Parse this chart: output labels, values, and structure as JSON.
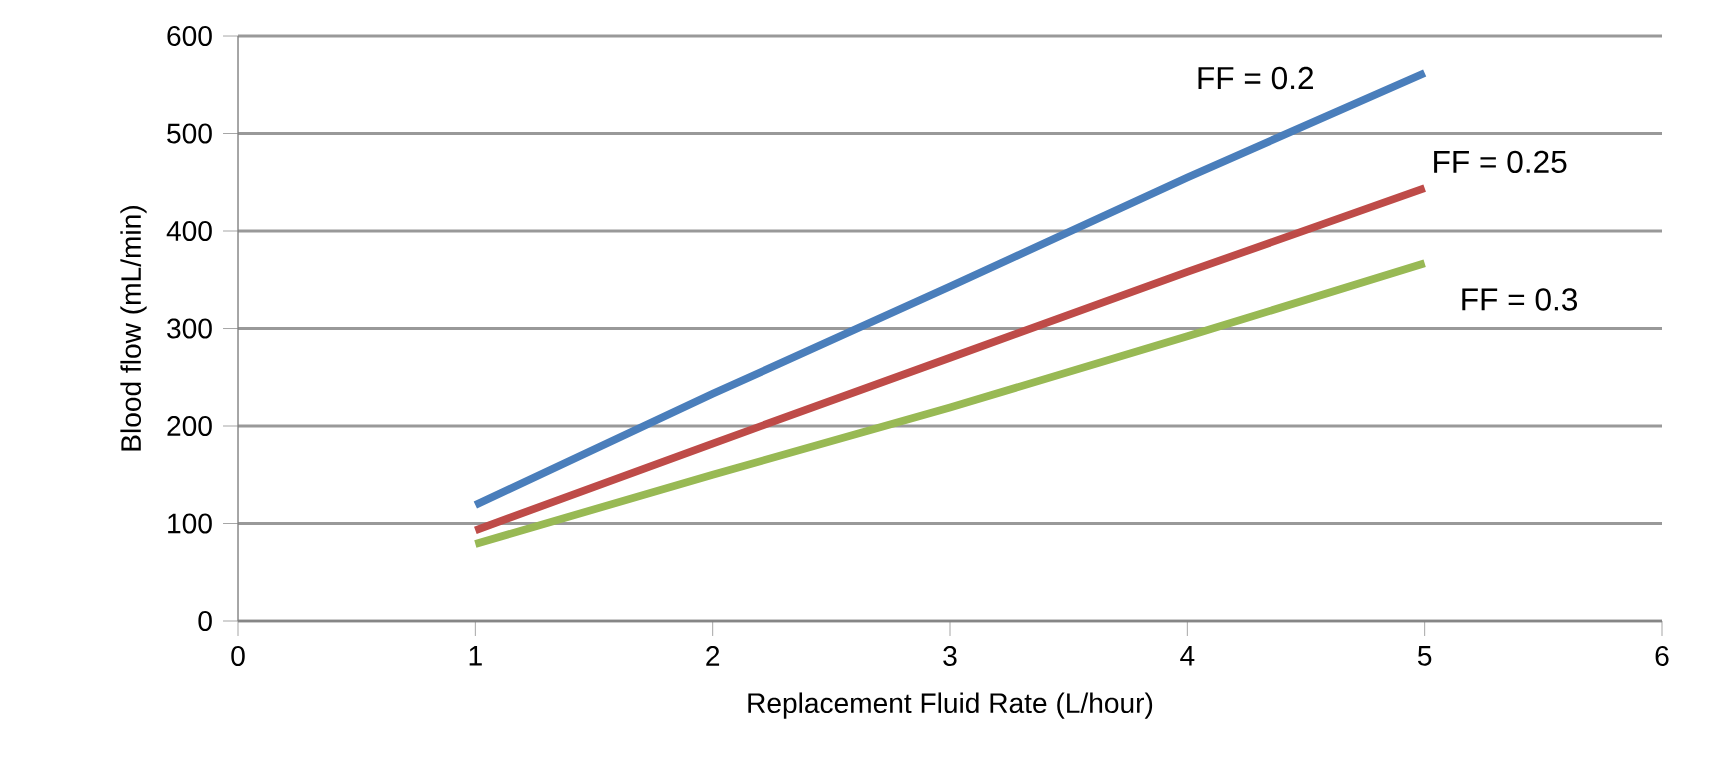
{
  "chart_data": {
    "type": "line",
    "xlabel": "Replacement  Fluid Rate (L/hour)",
    "ylabel": "Blood flow (mL/min)",
    "x": [
      1,
      2,
      3,
      4,
      5
    ],
    "series": [
      {
        "name": "FF = 0.2",
        "color": "#4a7ebb",
        "values": [
          119,
          233,
          343,
          455,
          562
        ]
      },
      {
        "name": "FF = 0.25",
        "color": "#be4b48",
        "values": [
          93,
          182,
          270,
          358,
          444
        ]
      },
      {
        "name": "FF = 0.3",
        "color": "#98b954",
        "values": [
          79,
          150,
          219,
          292,
          367
        ]
      }
    ],
    "xlim": [
      0,
      6
    ],
    "xticks": [
      0,
      1,
      2,
      3,
      4,
      5,
      6
    ],
    "ylim": [
      0,
      600
    ],
    "yticks": [
      0,
      100,
      200,
      300,
      400,
      500,
      600
    ],
    "grid": "y",
    "marker": "none",
    "line_style": "solid"
  }
}
